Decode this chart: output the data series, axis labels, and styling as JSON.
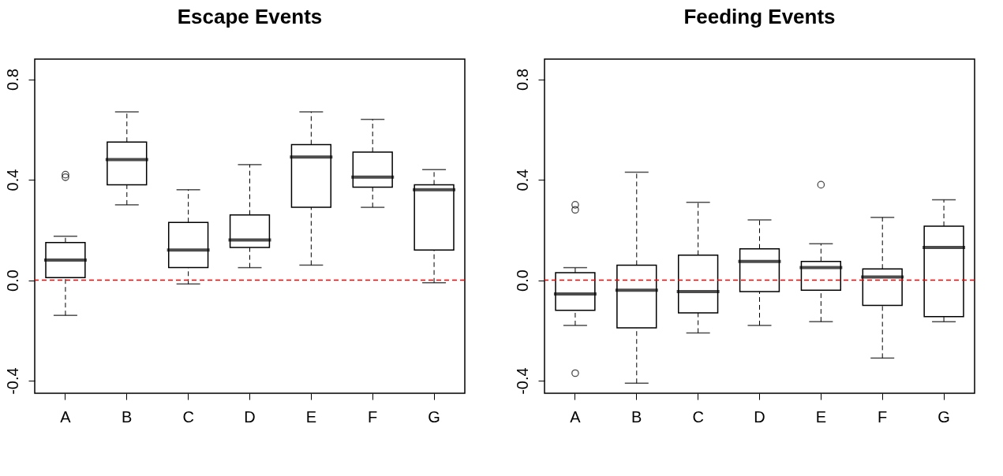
{
  "chart_data": [
    {
      "type": "box",
      "title": "Escape Events",
      "categories": [
        "A",
        "B",
        "C",
        "D",
        "E",
        "F",
        "G"
      ],
      "ylim": [
        -0.45,
        0.88
      ],
      "yticks": [
        -0.4,
        {
          "value": 0,
          "label": "0.0"
        },
        0.4,
        0.8
      ],
      "grid": false,
      "ref_lines": [
        {
          "axis": "y",
          "value": 0,
          "color": "#ff0000",
          "line_style": "dashed"
        }
      ],
      "boxes": [
        {
          "low": -0.14,
          "q1": 0.01,
          "median": 0.08,
          "q3": 0.15,
          "high": 0.175,
          "outliers": [
            0.41,
            0.42
          ]
        },
        {
          "low": 0.3,
          "q1": 0.38,
          "median": 0.48,
          "q3": 0.55,
          "high": 0.67
        },
        {
          "low": -0.015,
          "q1": 0.05,
          "median": 0.12,
          "q3": 0.23,
          "high": 0.36
        },
        {
          "low": 0.05,
          "q1": 0.13,
          "median": 0.16,
          "q3": 0.26,
          "high": 0.46
        },
        {
          "low": 0.06,
          "q1": 0.29,
          "median": 0.49,
          "q3": 0.54,
          "high": 0.67
        },
        {
          "low": 0.29,
          "q1": 0.37,
          "median": 0.41,
          "q3": 0.51,
          "high": 0.64
        },
        {
          "low": -0.01,
          "q1": 0.12,
          "median": 0.36,
          "q3": 0.38,
          "high": 0.44
        }
      ]
    },
    {
      "type": "box",
      "title": "Feeding Events",
      "categories": [
        "A",
        "B",
        "C",
        "D",
        "E",
        "F",
        "G"
      ],
      "ylim": [
        -0.45,
        0.88
      ],
      "yticks": [
        -0.4,
        {
          "value": 0,
          "label": "0.0"
        },
        0.4,
        0.8
      ],
      "grid": false,
      "ref_lines": [
        {
          "axis": "y",
          "value": 0,
          "color": "#ff0000",
          "line_style": "dashed"
        }
      ],
      "boxes": [
        {
          "low": -0.18,
          "q1": -0.12,
          "median": -0.055,
          "q3": 0.03,
          "high": 0.05,
          "outliers": [
            0.28,
            0.3,
            -0.37
          ]
        },
        {
          "low": -0.41,
          "q1": -0.19,
          "median": -0.04,
          "q3": 0.06,
          "high": 0.43
        },
        {
          "low": -0.21,
          "q1": -0.13,
          "median": -0.045,
          "q3": 0.1,
          "high": 0.31
        },
        {
          "low": -0.18,
          "q1": -0.045,
          "median": 0.075,
          "q3": 0.125,
          "high": 0.24
        },
        {
          "low": -0.165,
          "q1": -0.04,
          "median": 0.05,
          "q3": 0.075,
          "high": 0.145,
          "outliers": [
            0.38
          ]
        },
        {
          "low": -0.31,
          "q1": -0.1,
          "median": 0.013,
          "q3": 0.045,
          "high": 0.25
        },
        {
          "low": -0.165,
          "q1": -0.145,
          "median": 0.13,
          "q3": 0.215,
          "high": 0.32
        }
      ]
    }
  ]
}
